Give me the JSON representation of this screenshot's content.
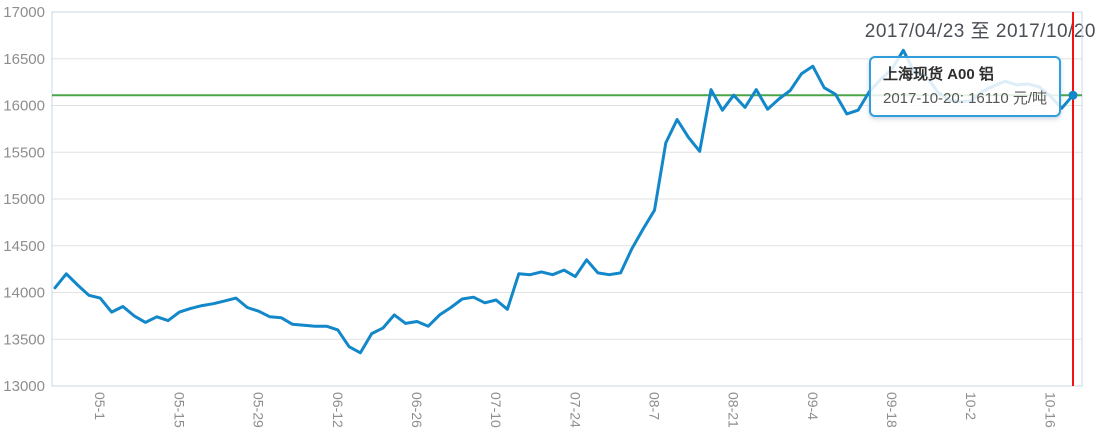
{
  "header": {
    "title": "2017/04/23 至 2017/10/20"
  },
  "tooltip": {
    "series_name": "上海现货 A00 铝",
    "value_line": "2017-10-20: 16110 元/吨"
  },
  "chart_data": {
    "type": "line",
    "title": "2017/04/23 至 2017/10/20",
    "series_name": "上海现货 A00 铝",
    "unit": "元/吨",
    "ylim": [
      13000,
      17000
    ],
    "y_ticks": [
      13000,
      13500,
      14000,
      14500,
      15000,
      15500,
      16000,
      16500,
      17000
    ],
    "x_tick_labels": [
      "05-1",
      "05-15",
      "05-29",
      "06-12",
      "06-26",
      "07-10",
      "07-24",
      "08-7",
      "08-21",
      "09-4",
      "09-18",
      "10-2",
      "10-16"
    ],
    "x_tick_indices": [
      4,
      11,
      18,
      25,
      32,
      39,
      46,
      53,
      60,
      67,
      74,
      81,
      88
    ],
    "grid": true,
    "legend_position": "none",
    "marker_line_value": 16110,
    "crosshair_date": "2017-10-20",
    "last_point": {
      "date": "2017-10-20",
      "value": 16110
    },
    "x": [
      "04-23",
      "04-25",
      "04-27",
      "04-29",
      "05-01",
      "05-03",
      "05-05",
      "05-07",
      "05-09",
      "05-11",
      "05-13",
      "05-15",
      "05-17",
      "05-19",
      "05-21",
      "05-23",
      "05-25",
      "05-27",
      "05-29",
      "05-31",
      "06-02",
      "06-04",
      "06-06",
      "06-08",
      "06-10",
      "06-12",
      "06-14",
      "06-16",
      "06-18",
      "06-20",
      "06-22",
      "06-24",
      "06-26",
      "06-28",
      "06-30",
      "07-02",
      "07-04",
      "07-06",
      "07-08",
      "07-10",
      "07-12",
      "07-14",
      "07-16",
      "07-18",
      "07-20",
      "07-22",
      "07-24",
      "07-26",
      "07-28",
      "07-30",
      "08-01",
      "08-03",
      "08-05",
      "08-07",
      "08-09",
      "08-11",
      "08-13",
      "08-15",
      "08-17",
      "08-19",
      "08-21",
      "08-23",
      "08-25",
      "08-27",
      "08-29",
      "08-31",
      "09-02",
      "09-04",
      "09-06",
      "09-08",
      "09-10",
      "09-12",
      "09-14",
      "09-16",
      "09-18",
      "09-20",
      "09-22",
      "09-24",
      "09-26",
      "09-28",
      "09-30",
      "10-02",
      "10-04",
      "10-06",
      "10-08",
      "10-10",
      "10-12",
      "10-14",
      "10-16",
      "10-18",
      "10-20"
    ],
    "values": [
      14050,
      14200,
      14080,
      13970,
      13940,
      13790,
      13850,
      13750,
      13680,
      13740,
      13700,
      13790,
      13830,
      13860,
      13880,
      13910,
      13940,
      13840,
      13800,
      13740,
      13730,
      13660,
      13650,
      13640,
      13640,
      13600,
      13420,
      13355,
      13560,
      13620,
      13760,
      13670,
      13690,
      13640,
      13760,
      13840,
      13930,
      13950,
      13890,
      13920,
      13820,
      14200,
      14190,
      14220,
      14190,
      14240,
      14170,
      14350,
      14210,
      14190,
      14210,
      14470,
      14680,
      14880,
      15600,
      15850,
      15660,
      15510,
      16170,
      15950,
      16110,
      15980,
      16170,
      15960,
      16070,
      16160,
      16340,
      16420,
      16190,
      16120,
      15910,
      15950,
      16150,
      16280,
      16390,
      16590,
      16350,
      16320,
      16150,
      16060,
      16040,
      16050,
      16150,
      16210,
      16260,
      16220,
      16230,
      16200,
      16100,
      15970,
      16110
    ],
    "colors": {
      "series": "#1287c9",
      "marker_line": "#4aa54a",
      "crosshair": "#f31212",
      "grid": "#e2e2e2",
      "border": "#c9d7e4",
      "axis_label": "#8e8e8e",
      "tooltip_border": "#2f9edb"
    }
  }
}
